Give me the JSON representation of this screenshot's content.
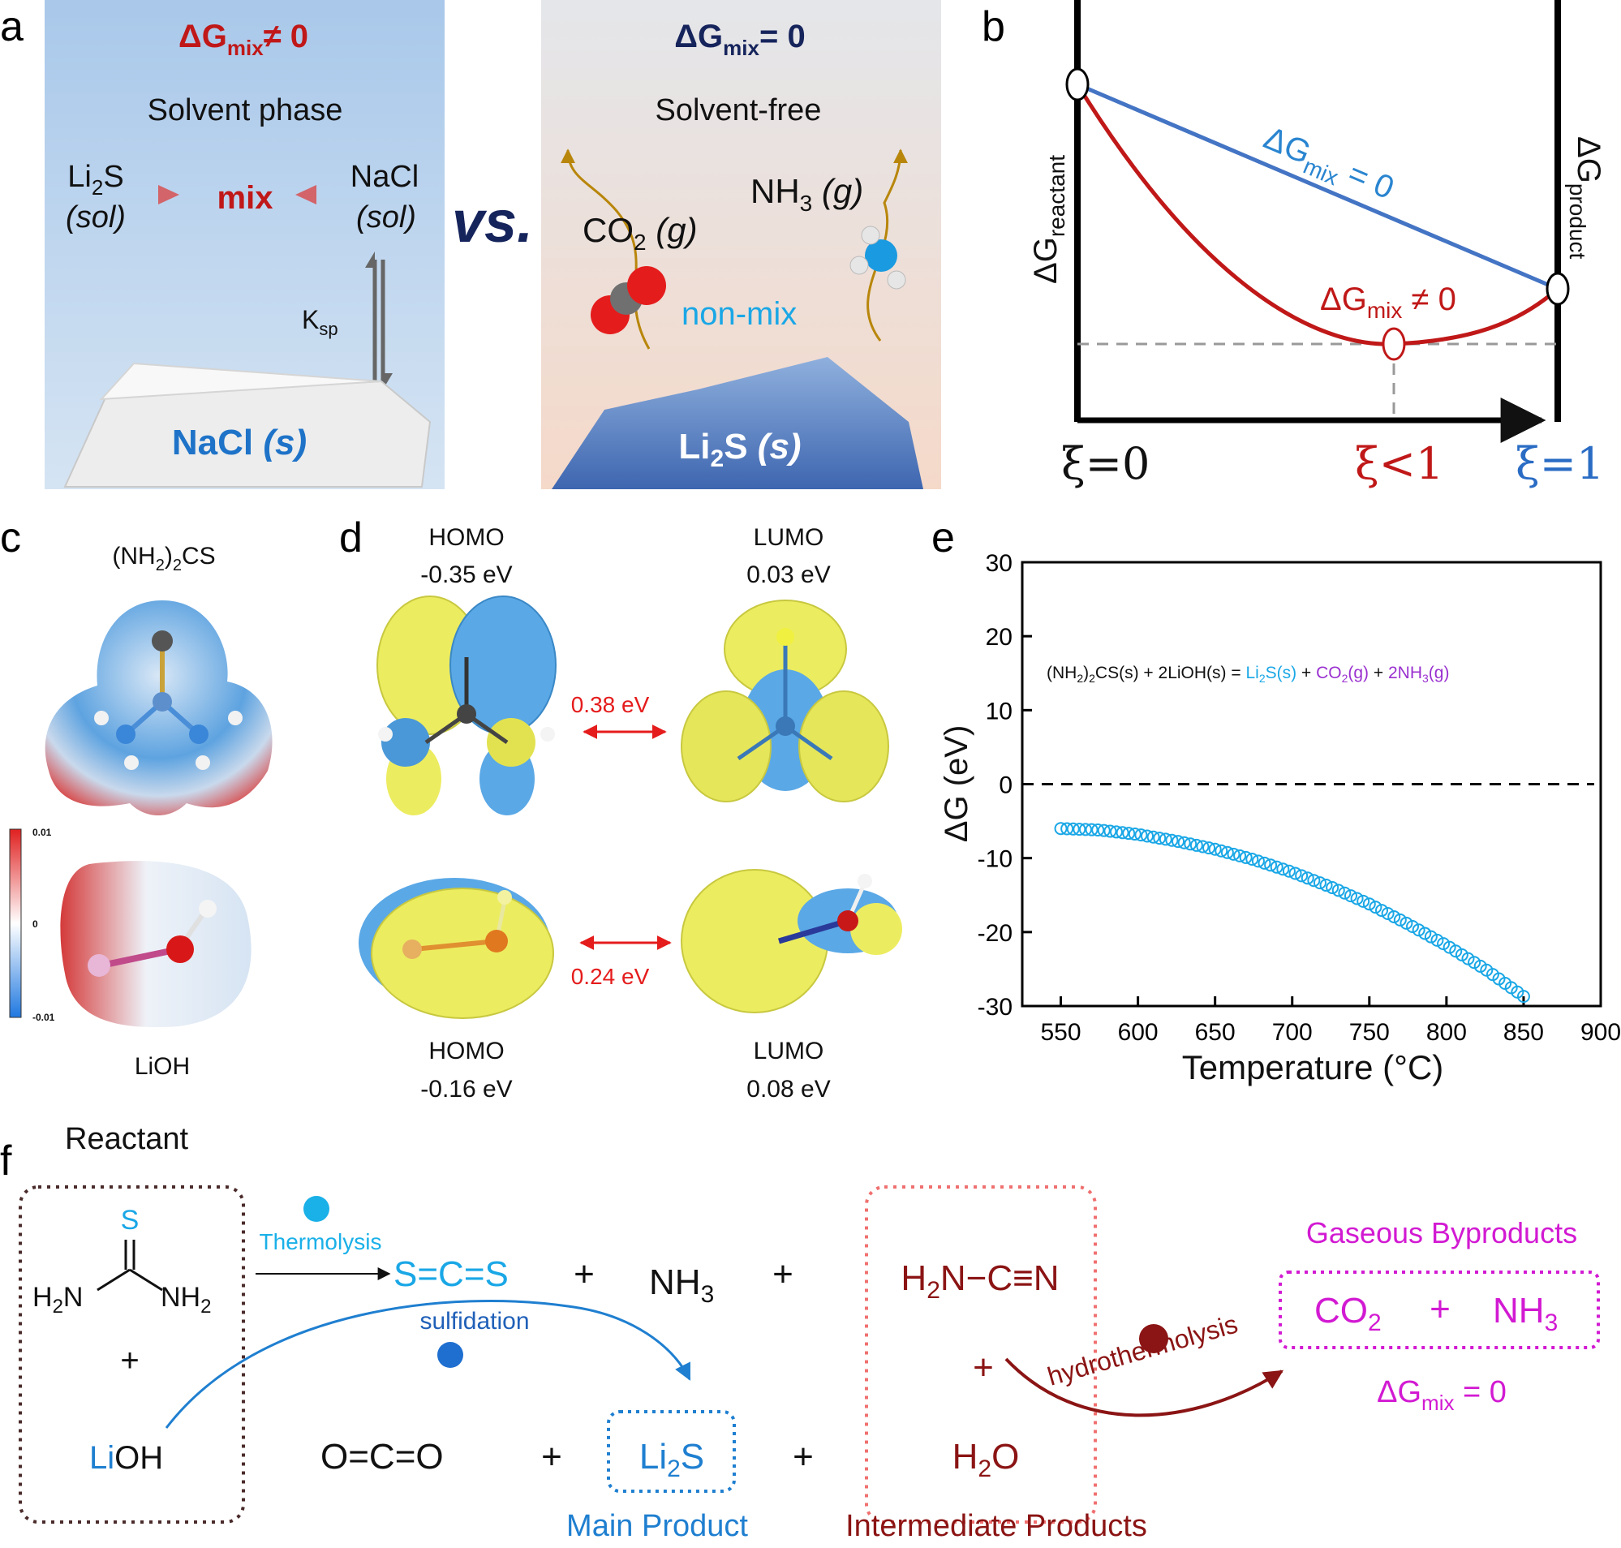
{
  "panel_labels": {
    "a": "a",
    "b": "b",
    "c": "c",
    "d": "d",
    "e": "e",
    "f": "f"
  },
  "colors": {
    "red": "#c01818",
    "blue": "#1f7fd0",
    "navy": "#16245c",
    "magenta": "#d21ad2",
    "darkred": "#8b1414",
    "cyan": "#1aa7e6"
  },
  "panel_a": {
    "left": {
      "dg_main": "ΔG",
      "dg_sub": "mix",
      "dg_tail": "≠ 0",
      "phase": "Solvent phase",
      "li2s_a": "Li",
      "li2s_sub": "2",
      "li2s_b": "S",
      "li2s_state": "(sol)",
      "mix": "mix",
      "nacl": "NaCl",
      "nacl_state": "(sol)",
      "ksp_main": "K",
      "ksp_sub": "sp",
      "solid_main": "NaCl",
      "solid_state": "(s)"
    },
    "vs": "vs.",
    "right": {
      "dg_main": "ΔG",
      "dg_sub": "mix",
      "dg_tail": "= 0",
      "phase": "Solvent-free",
      "co2_a": "CO",
      "co2_sub": "2",
      "co2_state": "(g)",
      "nh3_a": "NH",
      "nh3_sub": "3",
      "nh3_state": "(g)",
      "nonmix": "non-mix",
      "solid_a": "Li",
      "solid_sub": "2",
      "solid_b": "S",
      "solid_state": "(s)"
    }
  },
  "panel_b": {
    "y_left_main": "ΔG",
    "y_left_sub": "reactant",
    "y_right_main": "ΔG",
    "y_right_sub": "product",
    "line_main": "ΔG",
    "line_sub": "mix",
    "line_tail": "= 0",
    "curve_main": "ΔG",
    "curve_sub": "mix",
    "curve_tail": "≠ 0",
    "xi0": "ξ=0",
    "xi_mid": "ξ<1",
    "xi1": "ξ=1"
  },
  "panel_c": {
    "top_a": "(NH",
    "top_sub": "2",
    "top_b": ")",
    "top_sub2": "2",
    "top_c": "CS",
    "bottom": "LiOH",
    "scale_max": "0.01",
    "scale_mid": "0",
    "scale_min": "-0.01"
  },
  "panel_d": {
    "homo1": "HOMO",
    "homo1_e": "-0.35 eV",
    "lumo1": "LUMO",
    "lumo1_e": "0.03 eV",
    "gap1": "0.38 eV",
    "gap2": "0.24 eV",
    "homo2": "HOMO",
    "homo2_e": "-0.16 eV",
    "lumo2": "LUMO",
    "lumo2_e": "0.08 eV"
  },
  "panel_e": {
    "xlabel": "Temperature (°C)",
    "ylabel": "ΔG (eV)",
    "eq": {
      "p1": "(NH",
      "p1s": "2",
      "p2": ")",
      "p2s": "2",
      "p3": "CS(s) + 2LiOH(s) = ",
      "li2s_a": "Li",
      "li2s_s": "2",
      "li2s_b": "S(s)",
      "plus1": " + ",
      "co2_a": "CO",
      "co2_s": "2",
      "co2_b": "(g)",
      "plus2": " + ",
      "nh3_a": "2NH",
      "nh3_s": "3",
      "nh3_b": "(g)"
    }
  },
  "chart_data": {
    "type": "scatter",
    "x_label": "Temperature (°C)",
    "y_label": "ΔG (eV)",
    "xlim": [
      525,
      900
    ],
    "ylim": [
      -30,
      30
    ],
    "x_ticks": [
      "550",
      "600",
      "650",
      "700",
      "750",
      "800",
      "850",
      "900"
    ],
    "y_ticks": [
      "30",
      "20",
      "10",
      "0",
      "-10",
      "-20",
      "-30"
    ],
    "reference_line_y": 0,
    "series": [
      {
        "color": "#1aa7e6",
        "x": [
          550,
          575,
          600,
          625,
          650,
          675,
          700,
          725,
          750,
          775,
          800,
          825,
          850
        ],
        "y": [
          -6.0,
          -6.2,
          -6.8,
          -7.7,
          -8.8,
          -10.2,
          -11.9,
          -13.9,
          -16.2,
          -18.9,
          -21.8,
          -25.0,
          -28.7
        ]
      }
    ],
    "annotation": "(NH2)2CS(s) + 2LiOH(s) = Li2S(s) + CO2(g) + 2NH3(g)"
  },
  "panel_f": {
    "reactant": "Reactant",
    "thiourea_s": "S",
    "thiourea_h2n": "H",
    "h2n_sub": "2",
    "h2n_n": "N",
    "thiourea_nh2": "NH",
    "nh2_sub": "2",
    "plus": "+",
    "lioh_li": "Li",
    "lioh_oh": "OH",
    "thermolysis": "Thermolysis",
    "sulfidation": "sulfidation",
    "cs2": "S=C=S",
    "nh3_a": "NH",
    "nh3_sub": "3",
    "cyanamide_a": "H",
    "cyanamide_sub": "2",
    "cyanamide_b": "N−C≡N",
    "h2o_a": "H",
    "h2o_sub": "2",
    "h2o_b": "O",
    "co2_struct": "O=C=O",
    "li2s_a": "Li",
    "li2s_sub": "2",
    "li2s_b": "S",
    "hydro": "hydrothermolysis",
    "gaseous": "Gaseous Byproducts",
    "gas_co2": "CO",
    "gas_co2_sub": "2",
    "gas_plus": "+",
    "gas_nh3": "NH",
    "gas_nh3_sub": "3",
    "dg_main": "ΔG",
    "dg_sub": "mix",
    "dg_tail": "= 0",
    "main_product": "Main Product",
    "intermediate": "Intermediate Products"
  }
}
